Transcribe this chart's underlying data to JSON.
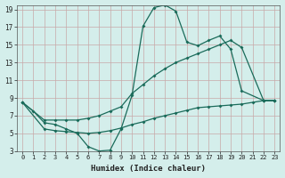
{
  "xlabel": "Humidex (Indice chaleur)",
  "bg_color": "#d4eeeb",
  "grid_color": "#c8a8a8",
  "line_color": "#1a6b5a",
  "xlim": [
    -0.5,
    23.5
  ],
  "ylim": [
    3,
    19.5
  ],
  "xticks": [
    0,
    1,
    2,
    3,
    4,
    5,
    6,
    7,
    8,
    9,
    10,
    11,
    12,
    13,
    14,
    15,
    16,
    17,
    18,
    19,
    20,
    21,
    22,
    23
  ],
  "yticks": [
    3,
    5,
    7,
    9,
    11,
    13,
    15,
    17,
    19
  ],
  "curve1_x": [
    0,
    1,
    2,
    3,
    4,
    5,
    6,
    7,
    8,
    9,
    10,
    11,
    12,
    13,
    14,
    15,
    16,
    17,
    18,
    19,
    20,
    22,
    23
  ],
  "curve1_y": [
    8.5,
    7.5,
    6.2,
    6.0,
    5.5,
    5.0,
    3.5,
    3.0,
    3.1,
    5.5,
    9.3,
    17.1,
    19.2,
    19.5,
    18.8,
    15.3,
    14.9,
    15.5,
    16.0,
    14.5,
    9.8,
    8.7,
    8.7
  ],
  "curve2_x": [
    0,
    2,
    3,
    4,
    5,
    6,
    7,
    8,
    9,
    10,
    11,
    12,
    13,
    14,
    15,
    16,
    17,
    18,
    19,
    20,
    22,
    23
  ],
  "curve2_y": [
    8.5,
    6.5,
    6.5,
    6.5,
    6.5,
    6.7,
    7.0,
    7.5,
    8.0,
    9.5,
    10.5,
    11.5,
    12.3,
    13.0,
    13.5,
    14.0,
    14.5,
    15.0,
    15.5,
    14.7,
    8.7,
    8.7
  ],
  "curve3_x": [
    0,
    2,
    3,
    4,
    5,
    6,
    7,
    8,
    9,
    10,
    11,
    12,
    13,
    14,
    15,
    16,
    17,
    18,
    19,
    20,
    21,
    22,
    23
  ],
  "curve3_y": [
    8.5,
    5.5,
    5.3,
    5.2,
    5.1,
    5.0,
    5.1,
    5.3,
    5.6,
    6.0,
    6.3,
    6.7,
    7.0,
    7.3,
    7.6,
    7.9,
    8.0,
    8.1,
    8.2,
    8.3,
    8.5,
    8.7,
    8.7
  ]
}
